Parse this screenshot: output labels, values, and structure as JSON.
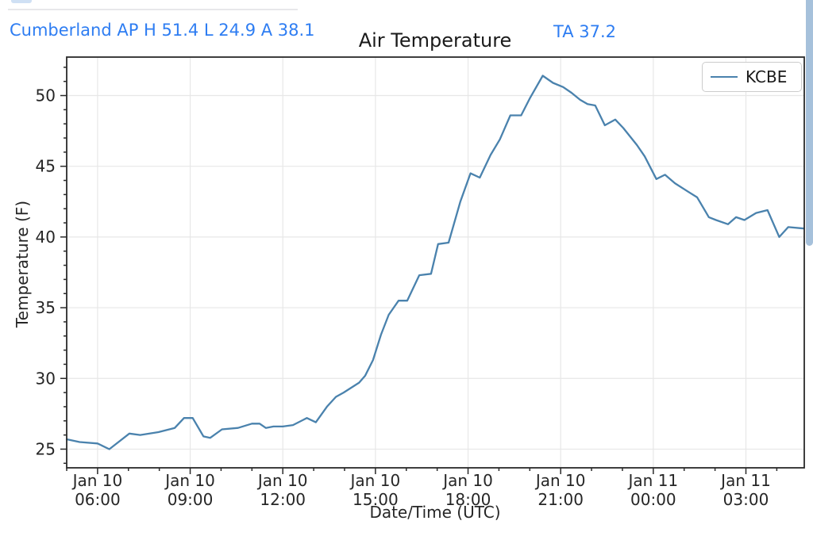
{
  "page": {
    "background": "#ffffff"
  },
  "header": {
    "station_summary": "Cumberland AP H 51.4 L 24.9 A 38.1",
    "current_reading": "TA 37.2",
    "accent_color": "#2e7df2",
    "stats": {
      "high": 51.4,
      "low": 24.9,
      "average": 38.1,
      "current_ta": 37.2
    }
  },
  "chart_data": {
    "type": "line",
    "title": "Air Temperature",
    "xlabel": "Date/Time (UTC)",
    "ylabel": "Temperature (F)",
    "grid": true,
    "legend": {
      "entries": [
        "KCBE"
      ],
      "position": "upper right"
    },
    "line_color": "#4a82ad",
    "grid_color": "#e7e7e7",
    "axis_color": "#2a2a2a",
    "tick_label_color": "#262626",
    "ylim": [
      23.68,
      52.72
    ],
    "xlim_hours": [
      5.0,
      28.89
    ],
    "yticks": [
      25,
      30,
      35,
      40,
      45,
      50
    ],
    "y_minor_step": 1,
    "x_minor_step_hours": 1,
    "xticks": [
      {
        "t": 6,
        "label": [
          "Jan 10",
          "06:00"
        ]
      },
      {
        "t": 9,
        "label": [
          "Jan 10",
          "09:00"
        ]
      },
      {
        "t": 12,
        "label": [
          "Jan 10",
          "12:00"
        ]
      },
      {
        "t": 15,
        "label": [
          "Jan 10",
          "15:00"
        ]
      },
      {
        "t": 18,
        "label": [
          "Jan 10",
          "18:00"
        ]
      },
      {
        "t": 21,
        "label": [
          "Jan 10",
          "21:00"
        ]
      },
      {
        "t": 24,
        "label": [
          "Jan 11",
          "00:00"
        ]
      },
      {
        "t": 27,
        "label": [
          "Jan 11",
          "03:00"
        ]
      }
    ],
    "series": [
      {
        "name": "KCBE",
        "points": [
          [
            5.0,
            25.7
          ],
          [
            5.42,
            25.5
          ],
          [
            6.0,
            25.4
          ],
          [
            6.38,
            25.0
          ],
          [
            7.03,
            26.1
          ],
          [
            7.38,
            26.0
          ],
          [
            7.97,
            26.2
          ],
          [
            8.5,
            26.5
          ],
          [
            8.8,
            27.2
          ],
          [
            9.08,
            27.2
          ],
          [
            9.43,
            25.9
          ],
          [
            9.65,
            25.8
          ],
          [
            10.03,
            26.4
          ],
          [
            10.55,
            26.5
          ],
          [
            11.0,
            26.8
          ],
          [
            11.25,
            26.8
          ],
          [
            11.45,
            26.5
          ],
          [
            11.7,
            26.6
          ],
          [
            12.0,
            26.6
          ],
          [
            12.33,
            26.7
          ],
          [
            12.78,
            27.2
          ],
          [
            13.07,
            26.9
          ],
          [
            13.43,
            28.0
          ],
          [
            13.72,
            28.7
          ],
          [
            13.97,
            29.0
          ],
          [
            14.47,
            29.7
          ],
          [
            14.67,
            30.2
          ],
          [
            14.92,
            31.3
          ],
          [
            15.18,
            33.1
          ],
          [
            15.43,
            34.5
          ],
          [
            15.75,
            35.5
          ],
          [
            16.03,
            35.5
          ],
          [
            16.42,
            37.3
          ],
          [
            16.8,
            37.4
          ],
          [
            17.03,
            39.5
          ],
          [
            17.37,
            39.6
          ],
          [
            17.75,
            42.5
          ],
          [
            18.08,
            44.5
          ],
          [
            18.38,
            44.2
          ],
          [
            18.73,
            45.8
          ],
          [
            19.03,
            46.9
          ],
          [
            19.37,
            48.6
          ],
          [
            19.72,
            48.6
          ],
          [
            20.0,
            49.8
          ],
          [
            20.42,
            51.4
          ],
          [
            20.75,
            50.9
          ],
          [
            21.08,
            50.6
          ],
          [
            21.35,
            50.2
          ],
          [
            21.63,
            49.7
          ],
          [
            21.87,
            49.4
          ],
          [
            22.12,
            49.3
          ],
          [
            22.43,
            47.9
          ],
          [
            22.77,
            48.3
          ],
          [
            23.03,
            47.7
          ],
          [
            23.47,
            46.5
          ],
          [
            23.72,
            45.7
          ],
          [
            24.1,
            44.1
          ],
          [
            24.38,
            44.4
          ],
          [
            24.7,
            43.8
          ],
          [
            25.13,
            43.2
          ],
          [
            25.42,
            42.8
          ],
          [
            25.8,
            41.4
          ],
          [
            26.03,
            41.2
          ],
          [
            26.42,
            40.9
          ],
          [
            26.68,
            41.4
          ],
          [
            26.95,
            41.2
          ],
          [
            27.33,
            41.7
          ],
          [
            27.7,
            41.9
          ],
          [
            28.08,
            40.0
          ],
          [
            28.37,
            40.7
          ],
          [
            28.88,
            40.6
          ]
        ]
      }
    ]
  },
  "scrollbar": {
    "color": "#a6c1db"
  }
}
